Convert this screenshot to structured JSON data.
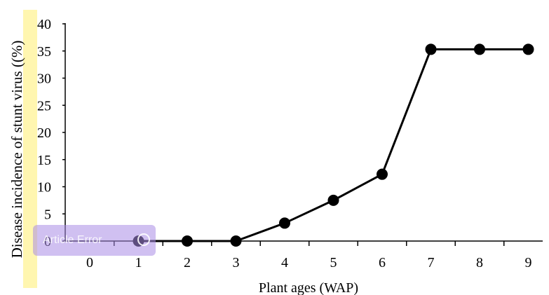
{
  "chart_data": {
    "type": "line",
    "xlabel": "Plant ages (WAP)",
    "ylabel": "Disease incidence of stunt virus ((%)",
    "x": [
      1,
      2,
      3,
      4,
      5,
      6,
      7,
      8,
      9
    ],
    "series": [
      {
        "values": [
          0,
          0,
          0,
          3.3,
          7.5,
          12.3,
          35.3,
          35.3,
          35.3
        ]
      }
    ],
    "xticks": [
      "0",
      "1",
      "2",
      "3",
      "4",
      "5",
      "6",
      "7",
      "8",
      "9"
    ],
    "yticks": [
      "0",
      "5",
      "10",
      "15",
      "20",
      "25",
      "30",
      "35",
      "40"
    ],
    "xlim": [
      0,
      9
    ],
    "ylim": [
      0,
      40
    ],
    "grid": false,
    "line_color": "#000000",
    "highlight_color": "#fff6b0"
  },
  "overlay": {
    "label": "Article Error",
    "color": "#aa8ce6"
  }
}
